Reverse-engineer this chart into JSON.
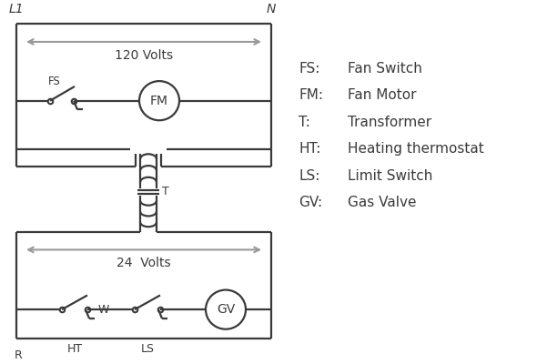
{
  "bg_color": "#ffffff",
  "line_color": "#3a3a3a",
  "arrow_color": "#999999",
  "legend_items": [
    [
      "FS:",
      "Fan Switch"
    ],
    [
      "FM:",
      "Fan Motor"
    ],
    [
      "T:",
      "Transformer"
    ],
    [
      "HT:",
      "Heating thermostat"
    ],
    [
      "LS:",
      "Limit Switch"
    ],
    [
      "GV:",
      "Gas Valve"
    ]
  ],
  "L1_label": "L1",
  "N_label": "N",
  "v120_label": "120 Volts",
  "v24_label": "24  Volts",
  "T_label": "T",
  "FS_label": "FS",
  "FM_label": "FM",
  "GV_label": "GV",
  "R_label": "R",
  "W_label": "W",
  "HT_label": "HT",
  "LS_label": "LS"
}
